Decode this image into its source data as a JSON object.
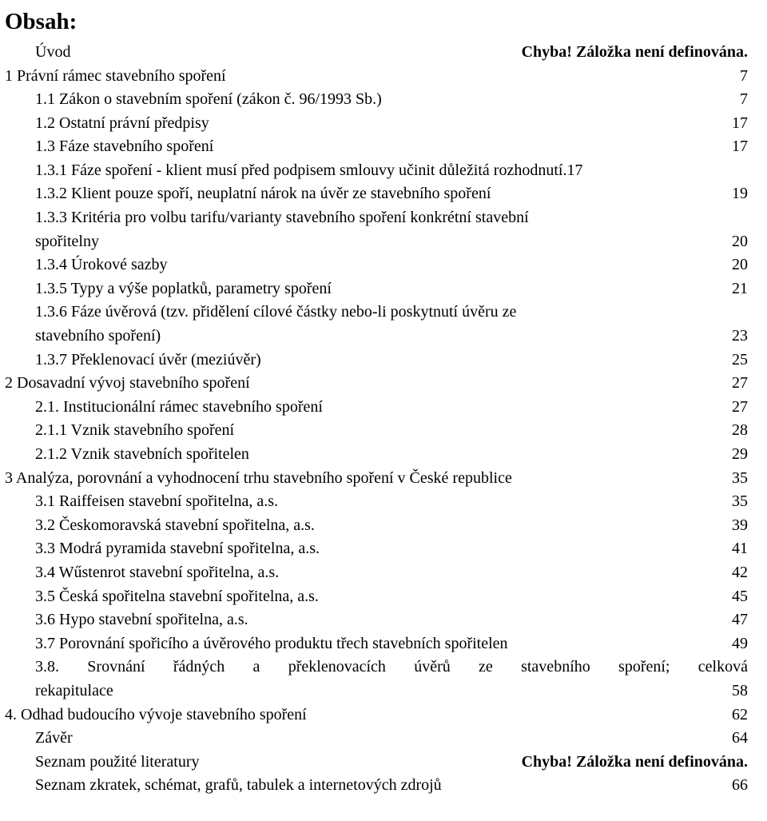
{
  "heading": "Obsah:",
  "error_text": "Chyba! Záložka není definována.",
  "entries": [
    {
      "label": "Úvod",
      "page": "ERR",
      "indent": true
    },
    {
      "label": "1 Právní rámec stavebního spoření",
      "page": "7",
      "indent": false
    },
    {
      "label": "1.1 Zákon o stavebním spoření (zákon č. 96/1993 Sb.)",
      "page": "7",
      "indent": true
    },
    {
      "label": "1.2 Ostatní právní předpisy",
      "page": "17",
      "indent": true
    },
    {
      "label": "1.3 Fáze stavebního spoření",
      "page": "17",
      "indent": true
    },
    {
      "label": "1.3.1 Fáze spoření - klient musí před podpisem smlouvy učinit důležitá rozhodnutí.17",
      "page": "RAW",
      "indent": true
    },
    {
      "label": "1.3.2 Klient pouze spoří, neuplatní nárok na úvěr ze stavebního spoření",
      "page": "19",
      "indent": true
    },
    {
      "label": "1.3.3 Kritéria pro volbu tarifu/varianty stavebního spoření konkrétní stavební",
      "cont": "spořitelny",
      "page": "20",
      "indent": true
    },
    {
      "label": "1.3.4 Úrokové sazby",
      "page": "20",
      "indent": true
    },
    {
      "label": "1.3.5 Typy a výše poplatků, parametry spoření",
      "page": "21",
      "indent": true
    },
    {
      "label": "1.3.6 Fáze úvěrová (tzv. přidělení cílové částky nebo-li poskytnutí úvěru ze",
      "cont": "stavebního spoření)",
      "page": "23",
      "indent": true
    },
    {
      "label": "1.3.7 Překlenovací úvěr (meziúvěr)",
      "page": "25",
      "indent": true
    },
    {
      "label": "2 Dosavadní vývoj stavebního spoření",
      "page": "27",
      "indent": false
    },
    {
      "label": "2.1. Institucionální rámec stavebního spoření",
      "page": "27",
      "indent": true
    },
    {
      "label": "2.1.1 Vznik stavebního spoření",
      "page": "28",
      "indent": true
    },
    {
      "label": "2.1.2 Vznik stavebních spořitelen",
      "page": "29",
      "indent": true
    },
    {
      "label": "3 Analýza, porovnání a vyhodnocení trhu stavebního spoření v České republice",
      "page": "35",
      "indent": false
    },
    {
      "label": "3.1 Raiffeisen stavební spořitelna, a.s.",
      "page": "35",
      "indent": true
    },
    {
      "label": "3.2 Českomoravská stavební spořitelna, a.s.",
      "page": "39",
      "indent": true
    },
    {
      "label": "3.3 Modrá pyramida stavební spořitelna, a.s.",
      "page": "41",
      "indent": true
    },
    {
      "label": "3.4 Wűstenrot stavební spořitelna, a.s.",
      "page": "42",
      "indent": true
    },
    {
      "label": "3.5 Česká spořitelna stavební spořitelna, a.s.",
      "page": "45",
      "indent": true
    },
    {
      "label": "3.6 Hypo stavební spořitelna, a.s.",
      "page": "47",
      "indent": true
    },
    {
      "label": "3.7 Porovnání spořicího a úvěrového produktu třech stavebních spořitelen",
      "page": "49",
      "indent": true
    },
    {
      "label_justify": [
        "3.8.",
        "Srovnání",
        "řádných",
        "a",
        "překlenovacích",
        "úvěrů",
        "ze",
        "stavebního",
        "spoření;",
        "celková"
      ],
      "cont": "rekapitulace",
      "page": "58",
      "indent": true
    },
    {
      "label": "4. Odhad budoucího vývoje stavebního spoření",
      "page": "62",
      "indent": false
    },
    {
      "label": "Závěr",
      "page": "64",
      "indent": true
    },
    {
      "label": "Seznam použité literatury",
      "page": "ERR",
      "indent": true
    },
    {
      "label": "Seznam zkratek, schémat, grafů, tabulek a internetových zdrojů",
      "page": "66",
      "indent": true
    }
  ]
}
